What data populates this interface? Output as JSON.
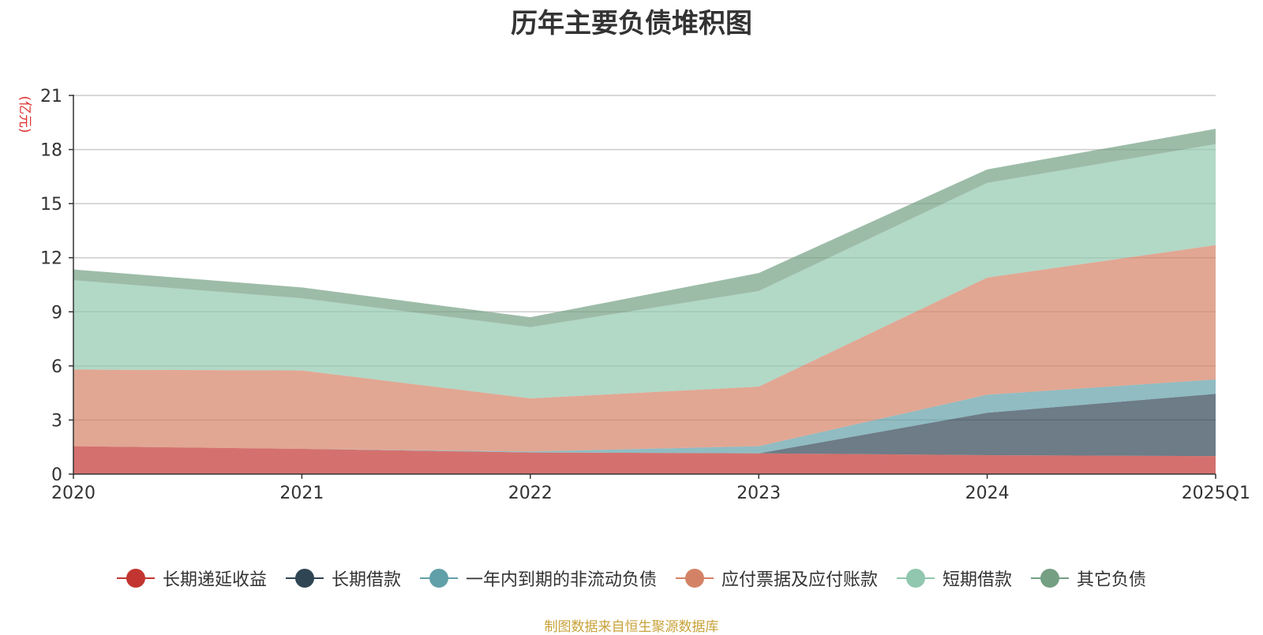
{
  "chart_data": {
    "type": "area",
    "stacked": true,
    "title": "历年主要负债堆积图",
    "ylabel": "(亿元)",
    "xlabel": "",
    "categories": [
      "2020",
      "2021",
      "2022",
      "2023",
      "2024",
      "2025Q1"
    ],
    "y_ticks": [
      0,
      3,
      6,
      9,
      12,
      15,
      18,
      21
    ],
    "ylim": [
      0,
      21
    ],
    "grid": true,
    "legend_position": "bottom",
    "series": [
      {
        "name": "长期递延收益",
        "color": "#c23531",
        "values": [
          1.55,
          1.4,
          1.2,
          1.15,
          1.05,
          1.0
        ]
      },
      {
        "name": "长期借款",
        "color": "#2f4554",
        "values": [
          0.0,
          0.0,
          0.0,
          0.0,
          2.35,
          3.45
        ]
      },
      {
        "name": "一年内到期的非流动负债",
        "color": "#61a0a8",
        "values": [
          0.0,
          0.0,
          0.05,
          0.4,
          1.0,
          0.8
        ]
      },
      {
        "name": "应付票据及应付账款",
        "color": "#d48265",
        "values": [
          4.25,
          4.35,
          2.95,
          3.3,
          6.5,
          7.45
        ]
      },
      {
        "name": "短期借款",
        "color": "#91c7ae",
        "values": [
          4.95,
          4.0,
          3.95,
          5.3,
          5.25,
          5.6
        ]
      },
      {
        "name": "其它负债",
        "color": "#749f83",
        "values": [
          0.6,
          0.6,
          0.55,
          1.0,
          0.75,
          0.85
        ]
      }
    ]
  },
  "source_note": "制图数据来自恒生聚源数据库"
}
